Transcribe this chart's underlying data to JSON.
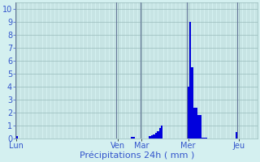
{
  "title": "",
  "xlabel": "Précipitations 24h ( mm )",
  "ylabel": "",
  "ylim": [
    0,
    10.5
  ],
  "yticks": [
    0,
    1,
    2,
    3,
    4,
    5,
    6,
    7,
    8,
    9,
    10
  ],
  "background_color": "#d4f0f0",
  "bar_color": "#0000dd",
  "bar_edge_color": "#4477ff",
  "grid_color": "#99bbbb",
  "n_bars": 120,
  "bar_values": [
    0.2,
    0.0,
    0.0,
    0.0,
    0.0,
    0.0,
    0.0,
    0.0,
    0.0,
    0.0,
    0.0,
    0.0,
    0.0,
    0.0,
    0.0,
    0.0,
    0.0,
    0.0,
    0.0,
    0.0,
    0.0,
    0.0,
    0.0,
    0.0,
    0.0,
    0.0,
    0.0,
    0.0,
    0.0,
    0.0,
    0.0,
    0.0,
    0.0,
    0.0,
    0.0,
    0.0,
    0.0,
    0.0,
    0.0,
    0.0,
    0.0,
    0.0,
    0.0,
    0.0,
    0.0,
    0.0,
    0.0,
    0.0,
    0.0,
    0.0,
    0.0,
    0.0,
    0.0,
    0.0,
    0.0,
    0.0,
    0.0,
    0.15,
    0.15,
    0.0,
    0.0,
    0.0,
    0.0,
    0.0,
    0.0,
    0.0,
    0.2,
    0.25,
    0.35,
    0.45,
    0.6,
    0.8,
    1.0,
    0.0,
    0.0,
    0.0,
    0.0,
    0.0,
    0.0,
    0.0,
    0.0,
    0.0,
    0.0,
    0.0,
    0.0,
    4.0,
    9.0,
    5.5,
    2.4,
    2.4,
    1.8,
    1.8,
    0.1,
    0.1,
    0.1,
    0.0,
    0.0,
    0.0,
    0.0,
    0.0,
    0.0,
    0.0,
    0.0,
    0.0,
    0.0,
    0.0,
    0.0,
    0.0,
    0.0,
    0.5,
    0.0,
    0.0,
    0.0,
    0.0,
    0.0,
    0.0,
    0.0,
    0.0,
    0.0,
    0.0
  ],
  "day_labels": [
    "Lun",
    "Ven",
    "Mar",
    "Mer",
    "Jeu"
  ],
  "day_bar_indices": [
    0,
    50,
    62,
    85,
    110
  ],
  "xlabel_color": "#3355cc",
  "xlabel_fontsize": 8,
  "tick_color": "#3355cc",
  "ytick_fontsize": 7,
  "xtick_fontsize": 7
}
